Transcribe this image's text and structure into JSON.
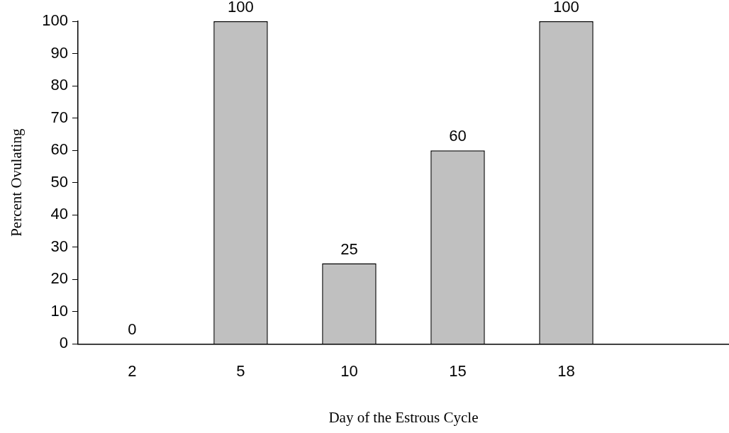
{
  "chart_data": {
    "type": "bar",
    "xlabel": "Day of the Estrous Cycle",
    "ylabel": "Percent Ovulating",
    "categories": [
      "2",
      "5",
      "10",
      "15",
      "18",
      null
    ],
    "values": [
      0,
      100,
      25,
      60,
      100,
      null
    ],
    "color": "#c0c0c0",
    "ylim": [
      0,
      100
    ],
    "yticks": [
      0,
      10,
      20,
      30,
      40,
      50,
      60,
      70,
      80,
      90,
      100
    ],
    "grid": false,
    "legend": false,
    "data_labels": true
  }
}
